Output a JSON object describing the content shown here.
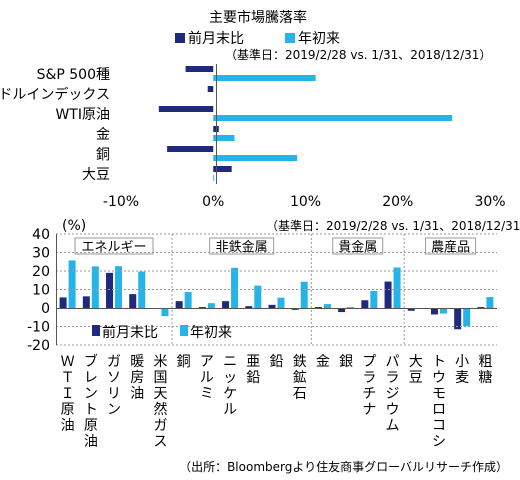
{
  "colors": {
    "mom": "#1f2a7f",
    "ytd": "#25b4e8",
    "axis": "#555555",
    "dash": "#9a9a9a",
    "sector_border": "#9a9a9a"
  },
  "legend": {
    "mom": "前月末比",
    "ytd": "年初来"
  },
  "chart_data": [
    {
      "type": "bar",
      "orientation": "horizontal",
      "title": "主要市場騰落率",
      "note": "（基準日：2019/2/28 vs. 1/31、2018/12/31）",
      "categories": [
        "S&P 500種",
        "ドルインデックス",
        "WTI原油",
        "金",
        "銅",
        "大豆"
      ],
      "series": [
        {
          "name": "前月末比",
          "values": [
            -3.0,
            -0.6,
            -5.9,
            0.6,
            -5.0,
            2.0
          ]
        },
        {
          "name": "年初来",
          "values": [
            11.1,
            0.0,
            25.9,
            2.3,
            9.1,
            0.1
          ]
        }
      ],
      "xlim": [
        -10,
        30
      ],
      "xticks": [
        "-10%",
        "0%",
        "10%",
        "20%",
        "30%"
      ],
      "xtick_values": [
        -10,
        0,
        10,
        20,
        30
      ],
      "legend_position": "top"
    },
    {
      "type": "bar",
      "unit": "(%)",
      "note": "（基準日：2019/2/28 vs. 1/31、2018/12/31）",
      "categories": [
        "ＷＴＩ原油",
        "ブレント原油",
        "ガソリン",
        "暖房油",
        "米国天然ガス",
        "銅",
        "アルミ",
        "ニッケル",
        "亜鉛",
        "鉛",
        "鉄鉱石",
        "金",
        "銀",
        "プラチナ",
        "パラジウム",
        "大豆",
        "トウモロコシ",
        "小麦",
        "粗糖"
      ],
      "sectors": [
        {
          "label": "エネルギー",
          "start": 0,
          "end": 4
        },
        {
          "label": "非鉄金属",
          "start": 5,
          "end": 10
        },
        {
          "label": "貴金属",
          "start": 11,
          "end": 14
        },
        {
          "label": "農産品",
          "start": 15,
          "end": 18
        }
      ],
      "series": [
        {
          "name": "前月末比",
          "values": [
            5.7,
            6.3,
            19.0,
            7.5,
            -0.5,
            3.7,
            0.5,
            3.7,
            1.0,
            1.7,
            -1.0,
            0.5,
            -2.2,
            4.2,
            14.3,
            -1.5,
            -3.5,
            -11.5,
            0.5
          ]
        },
        {
          "name": "年初来",
          "values": [
            25.7,
            22.5,
            22.6,
            19.7,
            -4.4,
            8.6,
            2.6,
            21.7,
            12.1,
            5.6,
            14.2,
            2.1,
            0.5,
            9.2,
            21.9,
            -0.3,
            -3.0,
            -9.9,
            5.9
          ]
        }
      ],
      "ylim": [
        -20,
        40
      ],
      "yticks": [
        40,
        30,
        20,
        10,
        0,
        -10,
        -20
      ],
      "legend_position": "bottom-left"
    }
  ],
  "source": "（出所：Bloombergより住友商事グローバルリサーチ作成）"
}
